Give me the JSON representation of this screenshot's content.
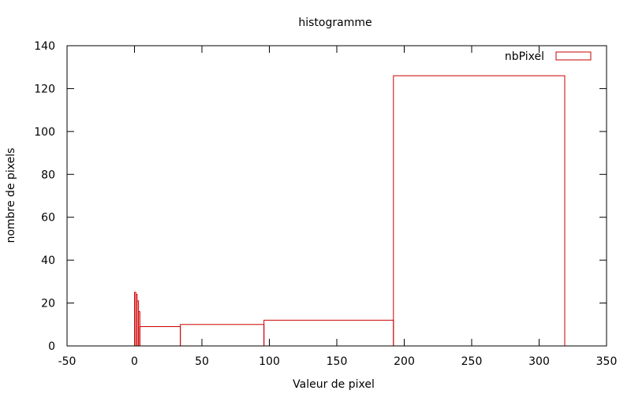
{
  "chart_data": {
    "type": "bar",
    "title": "histogramme",
    "xlabel": "Valeur de pixel",
    "ylabel": "nombre de pixels",
    "xlim": [
      -50,
      350
    ],
    "ylim": [
      0,
      140
    ],
    "xticks": [
      -50,
      0,
      50,
      100,
      150,
      200,
      250,
      300,
      350
    ],
    "yticks": [
      0,
      20,
      40,
      60,
      80,
      100,
      120,
      140
    ],
    "grid": false,
    "legend_position": "top-right",
    "series": [
      {
        "name": "nbPixel",
        "color": "#cc0000",
        "bins": [
          {
            "x0": 0,
            "x1": 1,
            "value": 25
          },
          {
            "x0": 1,
            "x1": 2,
            "value": 24
          },
          {
            "x0": 2,
            "x1": 3,
            "value": 21
          },
          {
            "x0": 3,
            "x1": 4,
            "value": 16
          },
          {
            "x0": 4,
            "x1": 34,
            "value": 9
          },
          {
            "x0": 34,
            "x1": 96,
            "value": 10
          },
          {
            "x0": 96,
            "x1": 192,
            "value": 12
          },
          {
            "x0": 192,
            "x1": 319,
            "value": 126
          }
        ]
      }
    ]
  }
}
